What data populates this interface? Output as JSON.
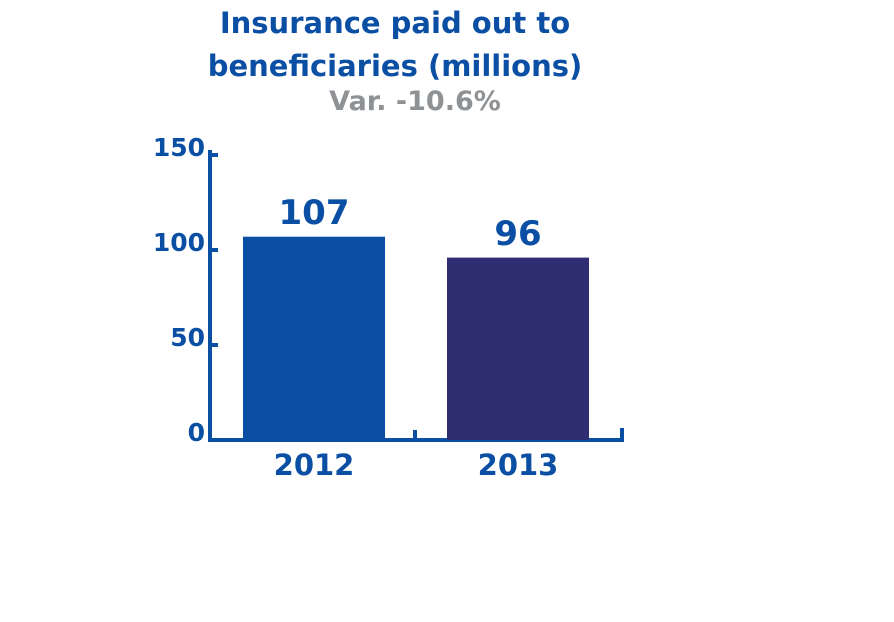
{
  "chart_data": {
    "type": "bar",
    "title": "Insurance paid out to beneficiaries (millions)",
    "subtitle": "Var. -10.6%",
    "categories": [
      "2012",
      "2013"
    ],
    "values": [
      107,
      96
    ],
    "colors": [
      "#0a4fa3",
      "#2f2e72"
    ],
    "ylim": [
      0,
      150
    ],
    "yticks": [
      0,
      50,
      100,
      150
    ]
  }
}
